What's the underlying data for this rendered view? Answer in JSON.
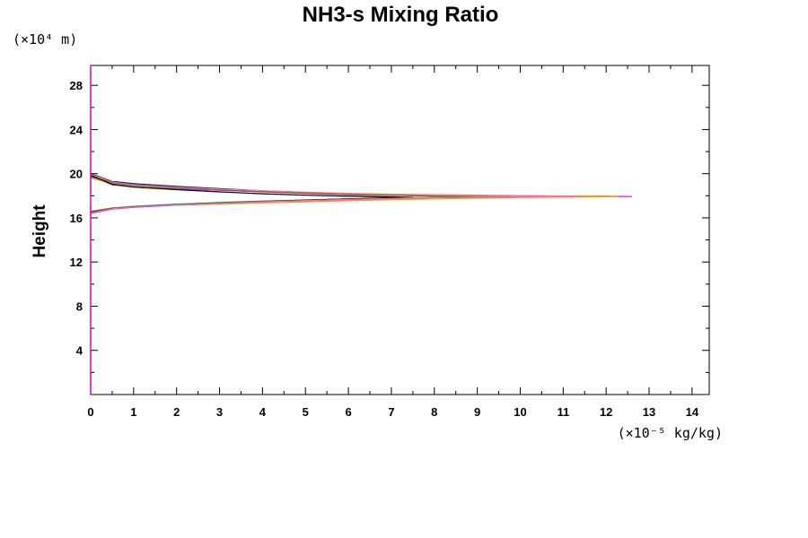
{
  "chart_data": {
    "type": "line",
    "title": "NH3-s Mixing Ratio",
    "xlabel": "",
    "ylabel": "Height",
    "x_unit": "(×10⁻⁵ kg/kg)",
    "y_unit": "(×10⁴ m)",
    "xlim": [
      0,
      14.4
    ],
    "ylim": [
      0,
      29.8
    ],
    "xticks": [
      "0",
      "1",
      "2",
      "3",
      "4",
      "5",
      "6",
      "7",
      "8",
      "9",
      "10",
      "11",
      "12",
      "13",
      "14"
    ],
    "yticks": [
      "4",
      "8",
      "12",
      "16",
      "20",
      "24",
      "28"
    ],
    "grid": false,
    "series": [
      {
        "color": "#000080",
        "points": [
          [
            0,
            16.5
          ],
          [
            0.5,
            16.85
          ],
          [
            1,
            17.0
          ],
          [
            2,
            17.2
          ],
          [
            3,
            17.35
          ],
          [
            4,
            17.5
          ],
          [
            5,
            17.6
          ],
          [
            6,
            17.72
          ],
          [
            7,
            17.8
          ],
          [
            8,
            17.85
          ],
          [
            9,
            17.88
          ],
          [
            9.5,
            17.9
          ],
          [
            9,
            17.93
          ],
          [
            8,
            17.98
          ],
          [
            7,
            18.05
          ],
          [
            6,
            18.15
          ],
          [
            5,
            18.3
          ],
          [
            4,
            18.45
          ],
          [
            3,
            18.65
          ],
          [
            2,
            18.85
          ],
          [
            1,
            19.1
          ],
          [
            0.5,
            19.3
          ],
          [
            0,
            20.0
          ]
        ]
      },
      {
        "color": "#ff0000",
        "points": [
          [
            0,
            16.5
          ],
          [
            0.5,
            16.82
          ],
          [
            1,
            16.98
          ],
          [
            2,
            17.18
          ],
          [
            3,
            17.32
          ],
          [
            4,
            17.48
          ],
          [
            5,
            17.58
          ],
          [
            6,
            17.7
          ],
          [
            7,
            17.78
          ],
          [
            8,
            17.84
          ],
          [
            9,
            17.87
          ],
          [
            10,
            17.9
          ],
          [
            9,
            17.94
          ],
          [
            8,
            17.98
          ],
          [
            7,
            18.04
          ],
          [
            6,
            18.1
          ],
          [
            5,
            18.22
          ],
          [
            4,
            18.35
          ],
          [
            3,
            18.5
          ],
          [
            2,
            18.65
          ],
          [
            1,
            18.85
          ],
          [
            0.5,
            19.0
          ],
          [
            0,
            19.8
          ]
        ]
      },
      {
        "color": "#ff00ff",
        "points": [
          [
            0,
            16.4
          ],
          [
            0.5,
            16.8
          ],
          [
            1,
            16.95
          ],
          [
            2,
            17.15
          ],
          [
            3,
            17.3
          ],
          [
            4,
            17.45
          ],
          [
            5,
            17.55
          ],
          [
            6,
            17.65
          ],
          [
            7,
            17.75
          ],
          [
            8,
            17.82
          ],
          [
            9,
            17.86
          ],
          [
            10,
            17.88
          ],
          [
            11,
            17.9
          ],
          [
            12,
            17.92
          ],
          [
            12.6,
            17.93
          ],
          [
            12,
            17.95
          ],
          [
            11,
            17.97
          ],
          [
            10,
            18.0
          ],
          [
            9,
            18.03
          ],
          [
            8,
            18.06
          ],
          [
            7,
            18.1
          ],
          [
            6,
            18.15
          ],
          [
            5,
            18.25
          ],
          [
            4,
            18.38
          ],
          [
            3,
            18.5
          ],
          [
            2,
            18.62
          ],
          [
            1,
            18.8
          ],
          [
            0.5,
            19.0
          ],
          [
            0,
            19.9
          ]
        ]
      },
      {
        "color": "#00c0c0",
        "points": [
          [
            0,
            16.6
          ],
          [
            0.5,
            16.9
          ],
          [
            1,
            17.05
          ],
          [
            2,
            17.25
          ],
          [
            3,
            17.4
          ],
          [
            4,
            17.52
          ],
          [
            5,
            17.62
          ],
          [
            6,
            17.72
          ],
          [
            7,
            17.8
          ],
          [
            8,
            17.86
          ],
          [
            9,
            17.9
          ],
          [
            10,
            17.92
          ],
          [
            10.5,
            17.93
          ],
          [
            10,
            17.96
          ],
          [
            9,
            18.0
          ],
          [
            8,
            18.05
          ],
          [
            7,
            18.1
          ],
          [
            6,
            18.2
          ],
          [
            5,
            18.3
          ],
          [
            4,
            18.42
          ],
          [
            3,
            18.55
          ],
          [
            2,
            18.7
          ],
          [
            1,
            18.9
          ],
          [
            0.5,
            19.2
          ],
          [
            0,
            19.7
          ]
        ]
      },
      {
        "color": "#ff9900",
        "points": [
          [
            0,
            16.6
          ],
          [
            0.5,
            16.88
          ],
          [
            1,
            17.02
          ],
          [
            2,
            17.15
          ],
          [
            3,
            17.25
          ],
          [
            4,
            17.35
          ],
          [
            5,
            17.45
          ],
          [
            6,
            17.55
          ],
          [
            7,
            17.65
          ],
          [
            8,
            17.72
          ],
          [
            9,
            17.78
          ],
          [
            10,
            17.84
          ],
          [
            11,
            17.88
          ],
          [
            12,
            17.91
          ],
          [
            12.3,
            17.92
          ],
          [
            12,
            17.95
          ],
          [
            11,
            17.98
          ],
          [
            10,
            18.02
          ],
          [
            9,
            18.06
          ],
          [
            8,
            18.1
          ],
          [
            7,
            18.15
          ],
          [
            6,
            18.22
          ],
          [
            5,
            18.32
          ],
          [
            4,
            18.45
          ],
          [
            3,
            18.55
          ],
          [
            2,
            18.7
          ],
          [
            1,
            18.85
          ],
          [
            0.5,
            19.1
          ],
          [
            0,
            19.6
          ]
        ]
      },
      {
        "color": "#00a000",
        "points": [
          [
            0,
            16.55
          ],
          [
            0.5,
            16.86
          ],
          [
            1,
            17.0
          ],
          [
            2,
            17.2
          ],
          [
            3,
            17.36
          ],
          [
            4,
            17.5
          ],
          [
            5,
            17.6
          ],
          [
            6,
            17.7
          ],
          [
            7,
            17.78
          ],
          [
            8,
            17.84
          ],
          [
            9,
            17.88
          ],
          [
            9.8,
            17.9
          ],
          [
            9,
            17.94
          ],
          [
            8,
            17.99
          ],
          [
            7,
            18.06
          ],
          [
            6,
            18.15
          ],
          [
            5,
            18.27
          ],
          [
            4,
            18.4
          ],
          [
            3,
            18.55
          ],
          [
            2,
            18.72
          ],
          [
            1,
            18.95
          ],
          [
            0.5,
            19.2
          ],
          [
            0,
            19.75
          ]
        ]
      },
      {
        "color": "#000000",
        "points": [
          [
            0,
            16.5
          ],
          [
            0.5,
            16.84
          ],
          [
            1,
            16.98
          ],
          [
            2,
            17.18
          ],
          [
            3,
            17.33
          ],
          [
            4,
            17.47
          ],
          [
            5,
            17.6
          ],
          [
            6,
            17.72
          ],
          [
            7,
            17.82
          ],
          [
            7.5,
            17.85
          ],
          [
            7,
            17.9
          ],
          [
            6,
            17.95
          ],
          [
            5,
            18.05
          ],
          [
            4,
            18.18
          ],
          [
            3,
            18.35
          ],
          [
            2,
            18.55
          ],
          [
            1,
            18.78
          ],
          [
            0.5,
            19.05
          ],
          [
            0,
            19.85
          ]
        ]
      },
      {
        "color": "#ff69b4",
        "points": [
          [
            0,
            16.45
          ],
          [
            0.5,
            16.83
          ],
          [
            1,
            16.97
          ],
          [
            2,
            17.17
          ],
          [
            3,
            17.32
          ],
          [
            4,
            17.46
          ],
          [
            5,
            17.57
          ],
          [
            6,
            17.68
          ],
          [
            7,
            17.77
          ],
          [
            8,
            17.83
          ],
          [
            9,
            17.87
          ],
          [
            10,
            17.9
          ],
          [
            11,
            17.92
          ],
          [
            11.4,
            17.93
          ],
          [
            11,
            17.96
          ],
          [
            10,
            17.99
          ],
          [
            9,
            18.02
          ],
          [
            8,
            18.06
          ],
          [
            7,
            18.12
          ],
          [
            6,
            18.2
          ],
          [
            5,
            18.32
          ],
          [
            4,
            18.45
          ],
          [
            3,
            18.6
          ],
          [
            2,
            18.78
          ],
          [
            1,
            19.0
          ],
          [
            0.5,
            19.25
          ],
          [
            0,
            19.95
          ]
        ]
      }
    ]
  }
}
